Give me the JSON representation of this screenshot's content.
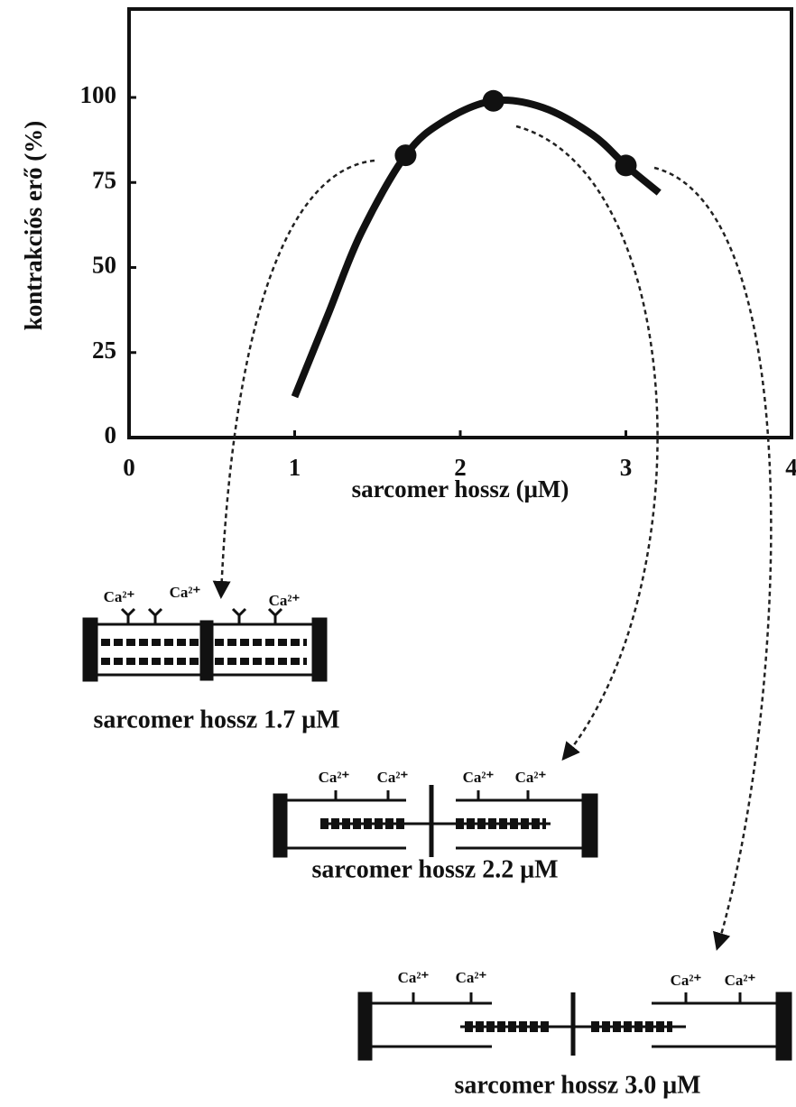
{
  "chart_data": {
    "type": "line",
    "ylabel": "kontrakciós erő (%)",
    "xlabel": "sarcomer hossz (μM)",
    "xlim": [
      0,
      4
    ],
    "xticks": [
      0,
      1,
      2,
      3,
      4
    ],
    "ylim": [
      0,
      126
    ],
    "yticks": [
      0,
      25,
      50,
      75,
      100
    ],
    "series": [
      {
        "color": "#111111",
        "x": [
          1.0,
          1.2,
          1.4,
          1.67,
          1.9,
          2.2,
          2.5,
          2.8,
          3.0,
          3.2
        ],
        "values": [
          12,
          36,
          60,
          83,
          93,
          99,
          97,
          89,
          80,
          72
        ]
      },
      {
        "color": "#111111",
        "markers": true,
        "x": [
          1.67,
          2.2,
          3.0
        ],
        "values": [
          83,
          99,
          80
        ]
      }
    ]
  },
  "diagrams": [
    {
      "label": "sarcomer hossz 1.7 μM",
      "ca_labels": [
        "Ca²⁺",
        "Ca²⁺",
        "Ca²⁺"
      ]
    },
    {
      "label": "sarcomer hossz 2.2 μM",
      "ca_labels": [
        "Ca²⁺",
        "Ca²⁺",
        "Ca²⁺",
        "Ca²⁺"
      ]
    },
    {
      "label": "sarcomer hossz 3.0 μM",
      "ca_labels": [
        "Ca²⁺",
        "Ca²⁺",
        "Ca²⁺",
        "Ca²⁺"
      ]
    }
  ]
}
